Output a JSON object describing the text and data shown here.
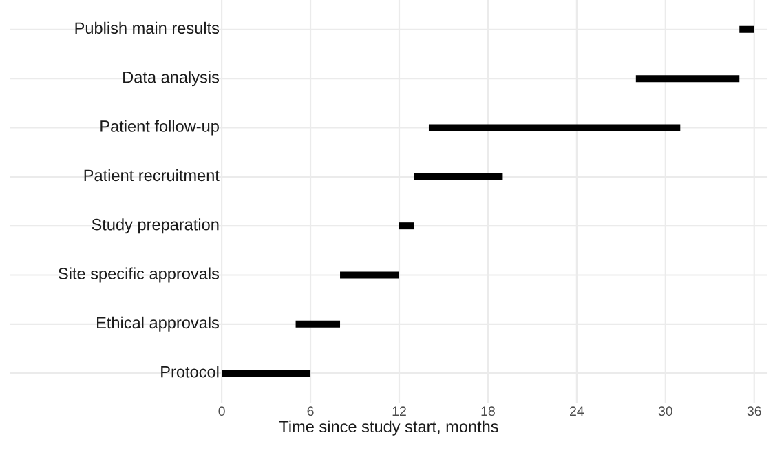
{
  "chart_data": {
    "type": "bar",
    "orientation": "horizontal",
    "xlabel": "Time since study start, months",
    "categories": [
      "Publish main results",
      "Data analysis",
      "Patient follow-up",
      "Patient recruitment",
      "Study preparation",
      "Site specific approvals",
      "Ethical approvals",
      "Protocol"
    ],
    "base": [
      35,
      28,
      14,
      13,
      12,
      8,
      5,
      0
    ],
    "values": [
      1,
      7,
      17,
      6,
      1,
      4,
      3,
      6
    ],
    "color": "#000000",
    "xlim": [
      -14.3,
      36.9
    ],
    "xticks": [
      0,
      6,
      12,
      18,
      24,
      30,
      36
    ],
    "grid": true
  }
}
